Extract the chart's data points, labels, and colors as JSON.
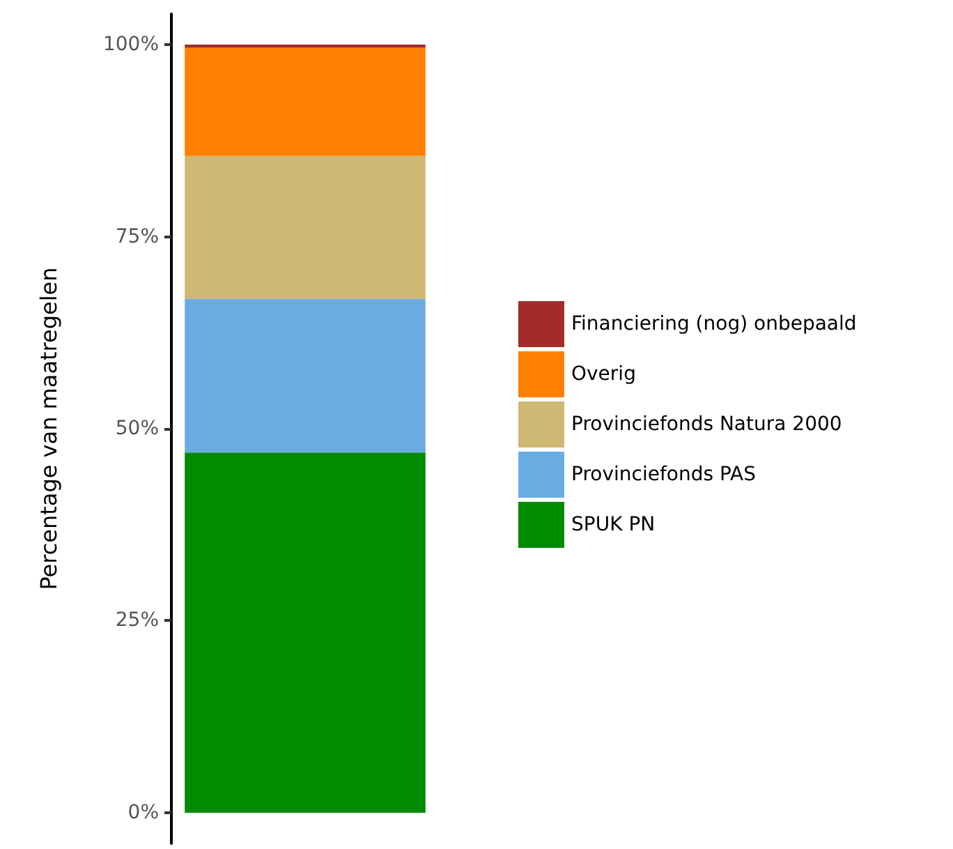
{
  "chart_data": {
    "type": "bar",
    "stacked": true,
    "ylabel": "Percentage van maatregelen",
    "categories": [
      null
    ],
    "series": [
      {
        "name": "SPUK PN",
        "color": "#008b00",
        "values": [
          46.9
        ]
      },
      {
        "name": "Provinciefonds PAS",
        "color": "#6aace2",
        "values": [
          20.0
        ]
      },
      {
        "name": "Provinciefonds Natura 2000",
        "color": "#cfb873",
        "values": [
          18.6
        ]
      },
      {
        "name": "Overig",
        "color": "#ff7f00",
        "values": [
          14.1
        ]
      },
      {
        "name": "Financiering (nog) onbepaald",
        "color": "#a52a2a",
        "values": [
          0.4
        ]
      }
    ],
    "ylim": [
      -4,
      104
    ],
    "yticks": [
      {
        "value": 0,
        "label": "0%"
      },
      {
        "value": 25,
        "label": "25%"
      },
      {
        "value": 50,
        "label": "50%"
      },
      {
        "value": 75,
        "label": "75%"
      },
      {
        "value": 100,
        "label": "100%"
      }
    ],
    "tick_labels": "y",
    "grid": false,
    "legend": "right"
  }
}
